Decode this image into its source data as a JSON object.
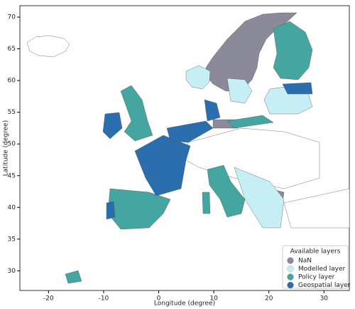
{
  "chart_data": {
    "type": "map",
    "xlabel": "Longitude (degree)",
    "ylabel": "Latitude (degree)",
    "xlim": [
      -25.2,
      34.6
    ],
    "ylim": [
      26.9,
      71.8
    ],
    "xticks": [
      -20,
      -10,
      0,
      10,
      20,
      30
    ],
    "yticks": [
      30,
      35,
      40,
      45,
      50,
      55,
      60,
      65,
      70
    ],
    "legend_title": "Available layers",
    "legend": "lower right",
    "series": [
      {
        "name": "NaN",
        "color": "#8a8a9a"
      },
      {
        "name": "Modelled layer",
        "color": "#c6eef5"
      },
      {
        "name": "Policy layer",
        "color": "#45a5a0"
      },
      {
        "name": "Geospatial layer",
        "color": "#2a6ead"
      }
    ]
  }
}
